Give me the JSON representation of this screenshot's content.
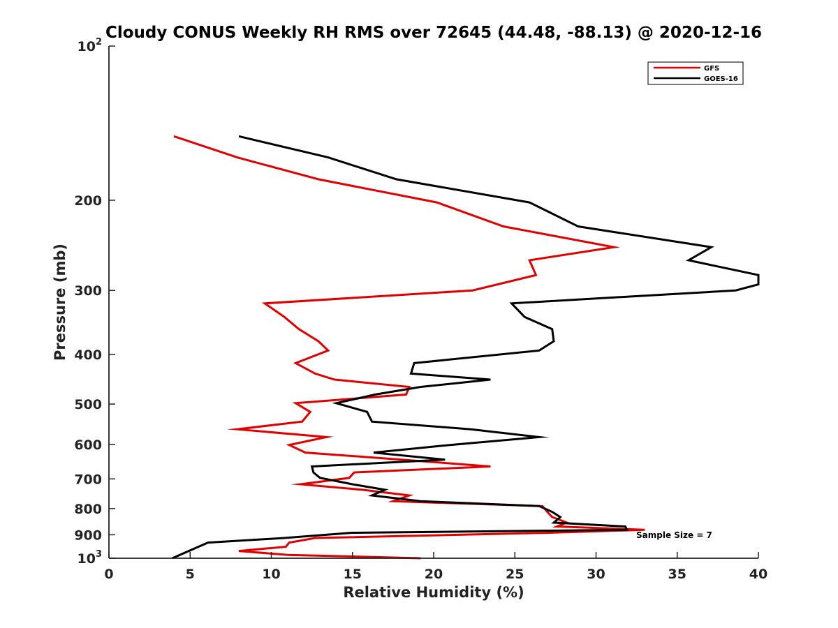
{
  "chart_data": {
    "type": "line",
    "title": "Cloudy CONUS Weekly RH RMS over 72645 (44.48, -88.13) @ 2020-12-16",
    "xlabel": "Relative Humidity (%)",
    "ylabel": "Pressure (mb)",
    "xlim": [
      0,
      40
    ],
    "ylim": [
      100,
      1000
    ],
    "yscale": "log",
    "y_reversed": true,
    "x_ticks": [
      "0",
      "5",
      "10",
      "15",
      "20",
      "25",
      "30",
      "35",
      "40"
    ],
    "y_ticks": [
      {
        "value": 100,
        "base": "10",
        "exp": "2"
      },
      {
        "value": 200,
        "label": "200"
      },
      {
        "value": 300,
        "label": "300"
      },
      {
        "value": 400,
        "label": "400"
      },
      {
        "value": 500,
        "label": "500"
      },
      {
        "value": 600,
        "label": "600"
      },
      {
        "value": 700,
        "label": "700"
      },
      {
        "value": 800,
        "label": "800"
      },
      {
        "value": 900,
        "label": "900"
      },
      {
        "value": 1000,
        "base": "10",
        "exp": "3"
      }
    ],
    "legend_position": "top-right",
    "annotation": "Sample Size = 7",
    "series": [
      {
        "name": "GFS",
        "color": "#e00000",
        "points": [
          [
            4.0,
            150
          ],
          [
            7.9,
            165
          ],
          [
            12.9,
            182
          ],
          [
            20.2,
            202
          ],
          [
            24.3,
            225
          ],
          [
            31.1,
            247
          ],
          [
            25.9,
            262
          ],
          [
            26.3,
            280
          ],
          [
            22.4,
            300
          ],
          [
            9.6,
            318
          ],
          [
            10.8,
            338
          ],
          [
            11.7,
            357
          ],
          [
            12.9,
            377
          ],
          [
            13.5,
            393
          ],
          [
            11.5,
            416
          ],
          [
            12.7,
            436
          ],
          [
            13.9,
            448
          ],
          [
            18.5,
            463
          ],
          [
            18.3,
            479
          ],
          [
            11.5,
            498
          ],
          [
            12.4,
            518
          ],
          [
            11.9,
            541
          ],
          [
            7.9,
            560
          ],
          [
            13.4,
            580
          ],
          [
            11.1,
            601
          ],
          [
            12.1,
            622
          ],
          [
            18.0,
            642
          ],
          [
            23.5,
            662
          ],
          [
            15.1,
            680
          ],
          [
            14.8,
            697
          ],
          [
            11.8,
            717
          ],
          [
            15.6,
            735
          ],
          [
            18.5,
            754
          ],
          [
            17.5,
            774
          ],
          [
            26.7,
            791
          ],
          [
            27.0,
            812
          ],
          [
            27.3,
            831
          ],
          [
            28.2,
            852
          ],
          [
            27.6,
            867
          ],
          [
            33.0,
            880
          ],
          [
            26.9,
            892
          ],
          [
            12.7,
            913
          ],
          [
            11.1,
            932
          ],
          [
            10.9,
            950
          ],
          [
            8.0,
            968
          ],
          [
            11.0,
            985
          ],
          [
            19.2,
            1000
          ]
        ]
      },
      {
        "name": "GOES-16",
        "color": "#000000",
        "points": [
          [
            8.0,
            150
          ],
          [
            13.5,
            165
          ],
          [
            17.7,
            182
          ],
          [
            25.9,
            202
          ],
          [
            28.9,
            225
          ],
          [
            37.1,
            247
          ],
          [
            35.7,
            262
          ],
          [
            40.0,
            280
          ],
          [
            40.0,
            292
          ],
          [
            38.6,
            300
          ],
          [
            24.8,
            318
          ],
          [
            25.6,
            338
          ],
          [
            27.3,
            357
          ],
          [
            27.4,
            377
          ],
          [
            26.5,
            393
          ],
          [
            18.8,
            416
          ],
          [
            18.6,
            436
          ],
          [
            23.5,
            448
          ],
          [
            19.2,
            463
          ],
          [
            16.4,
            479
          ],
          [
            14.0,
            498
          ],
          [
            15.9,
            518
          ],
          [
            16.2,
            541
          ],
          [
            22.3,
            560
          ],
          [
            26.5,
            580
          ],
          [
            21.0,
            601
          ],
          [
            16.3,
            622
          ],
          [
            20.7,
            642
          ],
          [
            12.5,
            662
          ],
          [
            12.6,
            680
          ],
          [
            13.0,
            697
          ],
          [
            15.0,
            717
          ],
          [
            17.0,
            735
          ],
          [
            16.2,
            754
          ],
          [
            19.2,
            774
          ],
          [
            26.5,
            791
          ],
          [
            27.3,
            812
          ],
          [
            27.8,
            831
          ],
          [
            27.4,
            852
          ],
          [
            31.8,
            867
          ],
          [
            31.9,
            880
          ],
          [
            14.9,
            892
          ],
          [
            10.8,
            913
          ],
          [
            6.1,
            932
          ],
          [
            3.9,
            1000
          ]
        ]
      }
    ]
  }
}
